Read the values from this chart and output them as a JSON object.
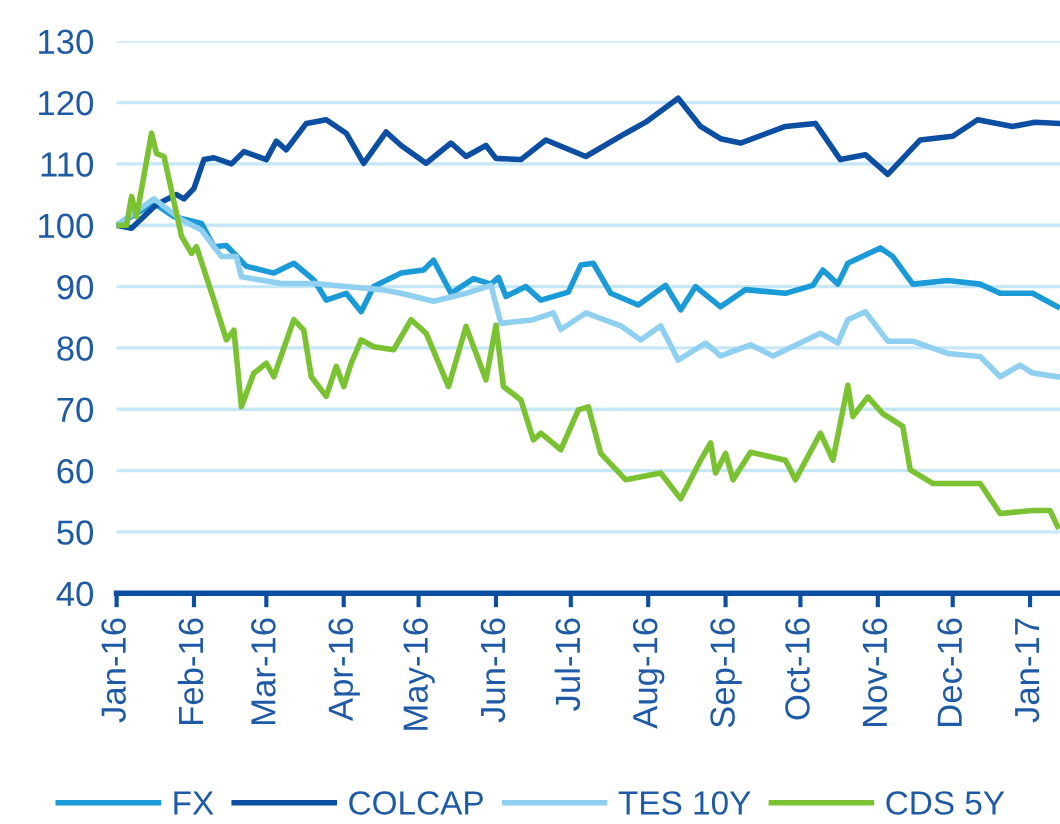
{
  "chart_data": {
    "type": "line",
    "ylim": [
      40,
      130
    ],
    "yticks": [
      40,
      50,
      60,
      70,
      80,
      90,
      100,
      110,
      120,
      130
    ],
    "xlim": [
      "2016-01-01",
      "2017-01-13"
    ],
    "xticks": [
      {
        "value": "2016-01-01",
        "label": "Jan-16"
      },
      {
        "value": "2016-02-01",
        "label": "Feb-16"
      },
      {
        "value": "2016-03-01",
        "label": "Mar-16"
      },
      {
        "value": "2016-04-01",
        "label": "Apr-16"
      },
      {
        "value": "2016-05-01",
        "label": "May-16"
      },
      {
        "value": "2016-06-01",
        "label": "Jun-16"
      },
      {
        "value": "2016-07-01",
        "label": "Jul-16"
      },
      {
        "value": "2016-08-01",
        "label": "Aug-16"
      },
      {
        "value": "2016-09-01",
        "label": "Sep-16"
      },
      {
        "value": "2016-10-01",
        "label": "Oct-16"
      },
      {
        "value": "2016-11-01",
        "label": "Nov-16"
      },
      {
        "value": "2016-12-01",
        "label": "Dec-16"
      },
      {
        "value": "2017-01-01",
        "label": "Jan-17"
      }
    ],
    "grid": "y",
    "legend": "bottom",
    "marker": "none",
    "line_style": "solid",
    "series": [
      {
        "name": "FX",
        "color": "#1a9ad6",
        "x": [
          "2016-01-01",
          "2016-01-16",
          "2016-01-24",
          "2016-02-04",
          "2016-02-09",
          "2016-02-14",
          "2016-02-22",
          "2016-03-04",
          "2016-03-12",
          "2016-03-20",
          "2016-03-25",
          "2016-04-02",
          "2016-04-08",
          "2016-04-13",
          "2016-04-24",
          "2016-05-03",
          "2016-05-07",
          "2016-05-14",
          "2016-05-23",
          "2016-05-30",
          "2016-06-02",
          "2016-06-05",
          "2016-06-13",
          "2016-06-19",
          "2016-06-30",
          "2016-07-05",
          "2016-07-10",
          "2016-07-17",
          "2016-07-28",
          "2016-08-08",
          "2016-08-14",
          "2016-08-20",
          "2016-08-30",
          "2016-09-09",
          "2016-09-25",
          "2016-10-06",
          "2016-10-10",
          "2016-10-16",
          "2016-10-20",
          "2016-11-02",
          "2016-11-07",
          "2016-11-15",
          "2016-11-29",
          "2016-12-12",
          "2016-12-20",
          "2017-01-02",
          "2017-01-12"
        ],
        "values": [
          100,
          103.6,
          101.4,
          100.3,
          96.5,
          96.7,
          93.3,
          92.2,
          93.8,
          91.1,
          87.8,
          88.9,
          85.9,
          90,
          92.2,
          92.7,
          94.3,
          88.9,
          91.3,
          90.4,
          91.5,
          88.4,
          90,
          87.8,
          89.1,
          93.5,
          93.8,
          88.9,
          87,
          90.2,
          86.2,
          90,
          86.7,
          89.5,
          88.9,
          90.2,
          92.7,
          90.4,
          93.8,
          96.3,
          94.9,
          90.4,
          91,
          90.4,
          88.9,
          88.9,
          86.7
        ]
      },
      {
        "name": "COLCAP",
        "color": "#0b4ea2",
        "x": [
          "2016-01-01",
          "2016-01-07",
          "2016-01-16",
          "2016-01-20",
          "2016-01-25",
          "2016-01-28",
          "2016-02-01",
          "2016-02-05",
          "2016-02-09",
          "2016-02-16",
          "2016-02-21",
          "2016-03-01",
          "2016-03-05",
          "2016-03-09",
          "2016-03-17",
          "2016-03-25",
          "2016-04-02",
          "2016-04-09",
          "2016-04-18",
          "2016-04-24",
          "2016-05-04",
          "2016-05-14",
          "2016-05-20",
          "2016-05-28",
          "2016-06-01",
          "2016-06-11",
          "2016-06-21",
          "2016-07-07",
          "2016-07-23",
          "2016-07-31",
          "2016-08-13",
          "2016-08-22",
          "2016-08-30",
          "2016-09-07",
          "2016-09-25",
          "2016-10-07",
          "2016-10-17",
          "2016-10-27",
          "2016-11-05",
          "2016-11-18",
          "2016-12-01",
          "2016-12-11",
          "2016-12-25",
          "2017-01-03",
          "2017-01-12"
        ],
        "values": [
          100,
          99.5,
          103,
          104,
          105,
          104.3,
          106,
          110.7,
          111,
          110,
          112,
          110.7,
          113.7,
          112.3,
          116.6,
          117.2,
          115,
          110.1,
          115.2,
          113,
          110.1,
          113.4,
          111.2,
          113,
          110.9,
          110.7,
          113.9,
          111.2,
          115,
          116.8,
          120.7,
          116.1,
          114.1,
          113.4,
          116.1,
          116.6,
          110.7,
          111.5,
          108.3,
          113.9,
          114.5,
          117.2,
          116.1,
          116.8,
          116.6
        ]
      },
      {
        "name": "TES 10Y",
        "color": "#8fd0f0",
        "x": [
          "2016-01-01",
          "2016-01-16",
          "2016-01-27",
          "2016-02-04",
          "2016-02-12",
          "2016-02-18",
          "2016-02-20",
          "2016-03-07",
          "2016-03-20",
          "2016-04-02",
          "2016-04-16",
          "2016-04-24",
          "2016-05-07",
          "2016-05-20",
          "2016-05-30",
          "2016-06-03",
          "2016-06-16",
          "2016-06-24",
          "2016-06-27",
          "2016-07-07",
          "2016-07-21",
          "2016-07-29",
          "2016-08-06",
          "2016-08-13",
          "2016-08-24",
          "2016-08-30",
          "2016-09-11",
          "2016-09-20",
          "2016-10-09",
          "2016-10-16",
          "2016-10-20",
          "2016-10-27",
          "2016-11-05",
          "2016-11-15",
          "2016-11-29",
          "2016-12-12",
          "2016-12-20",
          "2016-12-28",
          "2017-01-02",
          "2017-01-12"
        ],
        "values": [
          100,
          104.3,
          100.9,
          99.2,
          94.9,
          94.9,
          91.6,
          90.5,
          90.5,
          90,
          89.5,
          88.9,
          87.6,
          88.9,
          90.2,
          84,
          84.6,
          85.7,
          83,
          85.7,
          83.6,
          81.3,
          83.6,
          78,
          80.8,
          78.7,
          80.5,
          78.7,
          82.4,
          80.8,
          84.6,
          85.9,
          81.1,
          81.1,
          79.1,
          78.6,
          75.3,
          77.2,
          75.9,
          75.3
        ]
      },
      {
        "name": "CDS 5Y",
        "color": "#7ac231",
        "x": [
          "2016-01-01",
          "2016-01-05",
          "2016-01-07",
          "2016-01-09",
          "2016-01-15",
          "2016-01-17",
          "2016-01-20",
          "2016-01-27",
          "2016-01-31",
          "2016-02-02",
          "2016-02-09",
          "2016-02-14",
          "2016-02-17",
          "2016-02-20",
          "2016-02-25",
          "2016-03-01",
          "2016-03-04",
          "2016-03-12",
          "2016-03-16",
          "2016-03-19",
          "2016-03-25",
          "2016-03-29",
          "2016-04-01",
          "2016-04-04",
          "2016-04-08",
          "2016-04-13",
          "2016-04-21",
          "2016-04-28",
          "2016-05-04",
          "2016-05-13",
          "2016-05-20",
          "2016-05-28",
          "2016-06-01",
          "2016-06-04",
          "2016-06-11",
          "2016-06-16",
          "2016-06-19",
          "2016-06-27",
          "2016-07-04",
          "2016-07-08",
          "2016-07-13",
          "2016-07-23",
          "2016-08-06",
          "2016-08-14",
          "2016-08-22",
          "2016-08-26",
          "2016-08-28",
          "2016-09-01",
          "2016-09-04",
          "2016-09-11",
          "2016-09-25",
          "2016-09-29",
          "2016-10-09",
          "2016-10-14",
          "2016-10-20",
          "2016-10-22",
          "2016-10-28",
          "2016-11-03",
          "2016-11-11",
          "2016-11-14",
          "2016-11-23",
          "2016-12-12",
          "2016-12-20",
          "2017-01-02",
          "2017-01-09",
          "2017-01-12"
        ],
        "values": [
          100,
          100,
          104.7,
          101.4,
          115,
          111.7,
          111.2,
          98.2,
          95.4,
          96.5,
          87.8,
          81.3,
          82.9,
          70.4,
          75.9,
          77.5,
          75.3,
          84.6,
          82.9,
          75.3,
          72.1,
          77,
          73.7,
          77.5,
          81.3,
          80.2,
          79.7,
          84.6,
          82.4,
          73.7,
          83.5,
          74.8,
          83.7,
          73.7,
          71.5,
          65,
          66.1,
          63.4,
          69.9,
          70.4,
          62.8,
          58.5,
          59.6,
          55.4,
          61.7,
          64.5,
          59.6,
          62.8,
          58.5,
          63,
          61.7,
          58.5,
          66.1,
          61.7,
          73.9,
          68.8,
          72,
          69.3,
          67.2,
          60.1,
          57.9,
          57.9,
          53,
          53.5,
          53.5,
          50.9
        ]
      }
    ]
  }
}
